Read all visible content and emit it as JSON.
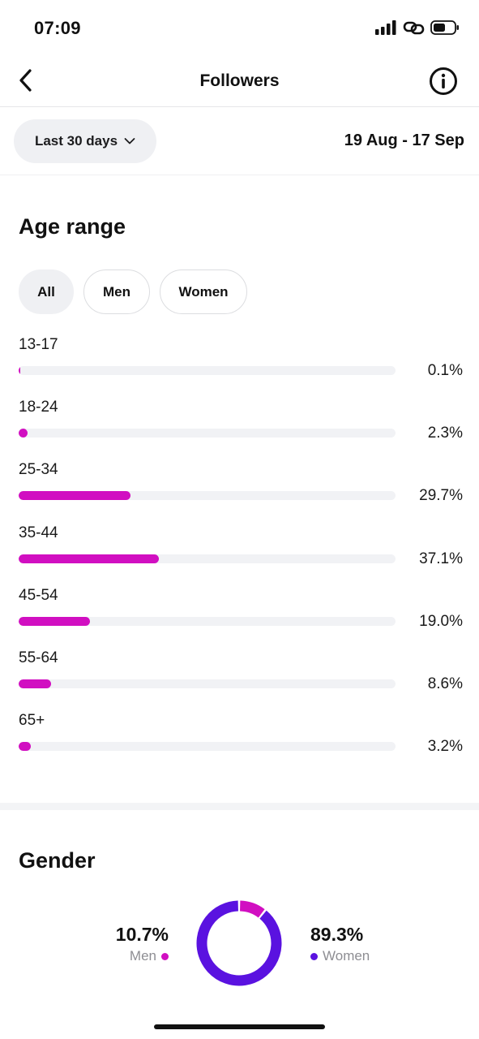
{
  "status_bar": {
    "time": "07:09",
    "icons": [
      "signal-icon",
      "link-icon",
      "battery-icon"
    ]
  },
  "nav": {
    "title": "Followers",
    "back_icon": "chevron-left-icon",
    "info_icon": "info-icon"
  },
  "filter": {
    "period_label": "Last 30 days",
    "date_range": "19 Aug - 17 Sep"
  },
  "age_section": {
    "title": "Age range",
    "chips": [
      {
        "label": "All",
        "active": true
      },
      {
        "label": "Men",
        "active": false
      },
      {
        "label": "Women",
        "active": false
      }
    ],
    "rows": [
      {
        "range": "13-17",
        "percent_label": "0.1%",
        "value": 0.1
      },
      {
        "range": "18-24",
        "percent_label": "2.3%",
        "value": 2.3
      },
      {
        "range": "25-34",
        "percent_label": "29.7%",
        "value": 29.7
      },
      {
        "range": "35-44",
        "percent_label": "37.1%",
        "value": 37.1
      },
      {
        "range": "45-54",
        "percent_label": "19.0%",
        "value": 19.0
      },
      {
        "range": "55-64",
        "percent_label": "8.6%",
        "value": 8.6
      },
      {
        "range": "65+",
        "percent_label": "3.2%",
        "value": 3.2
      }
    ]
  },
  "gender_section": {
    "title": "Gender",
    "men": {
      "percent_label": "10.7%",
      "label": "Men",
      "value": 10.7
    },
    "women": {
      "percent_label": "89.3%",
      "label": "Women",
      "value": 89.3
    }
  },
  "colors": {
    "accent_magenta": "#d10fc1",
    "accent_purple": "#5a12e0",
    "track": "#f1f2f5",
    "chip_active": "#eff0f3"
  }
}
